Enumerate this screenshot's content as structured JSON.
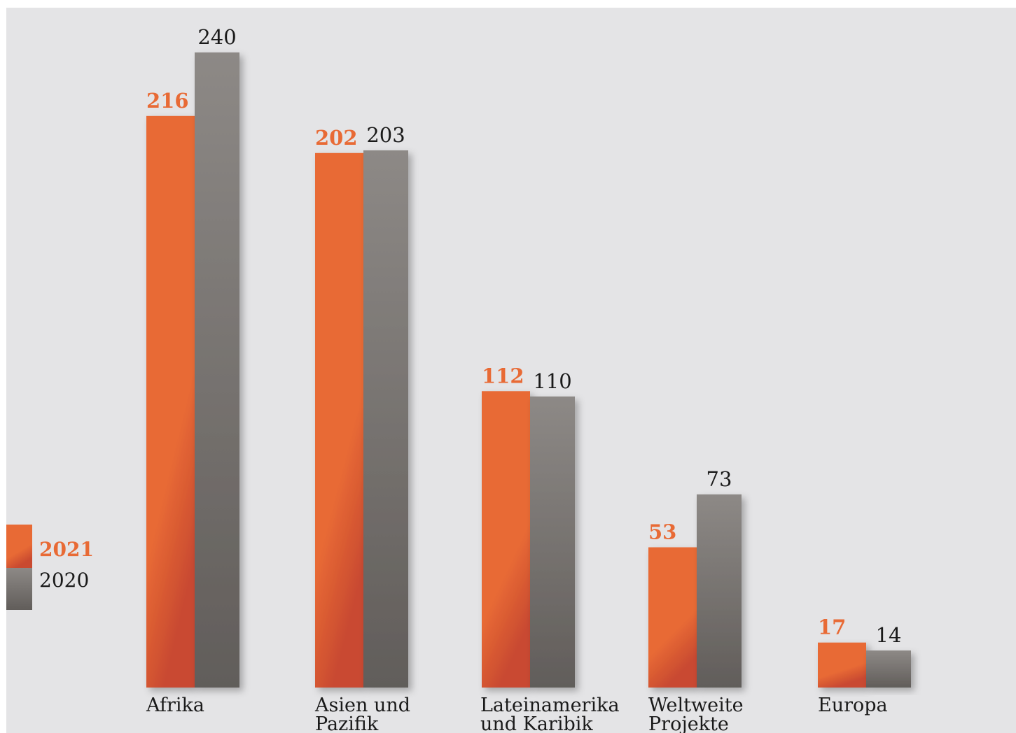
{
  "chart_data": {
    "type": "bar",
    "title": "",
    "xlabel": "",
    "ylabel": "",
    "ylim": [
      0,
      240
    ],
    "grid": false,
    "legend_placement": "left",
    "categories": [
      [
        "Afrika"
      ],
      [
        "Asien und",
        "Pazifik"
      ],
      [
        "Lateinamerika",
        "und Karibik"
      ],
      [
        "Weltweite",
        "Projekte"
      ],
      [
        "Europa"
      ]
    ],
    "series": [
      {
        "name": "2021",
        "values": [
          216,
          202,
          112,
          53,
          17
        ],
        "color": "#e86a35"
      },
      {
        "name": "2020",
        "values": [
          240,
          203,
          110,
          73,
          14
        ],
        "color": "#7a7673"
      }
    ]
  },
  "colors": {
    "background": "#e4e4e6",
    "orange": "#e86a35",
    "orange_dark": "#c94a30",
    "gray_light": "#8d8986",
    "gray_dark": "#615d5a",
    "text": "#1a1a1a"
  }
}
